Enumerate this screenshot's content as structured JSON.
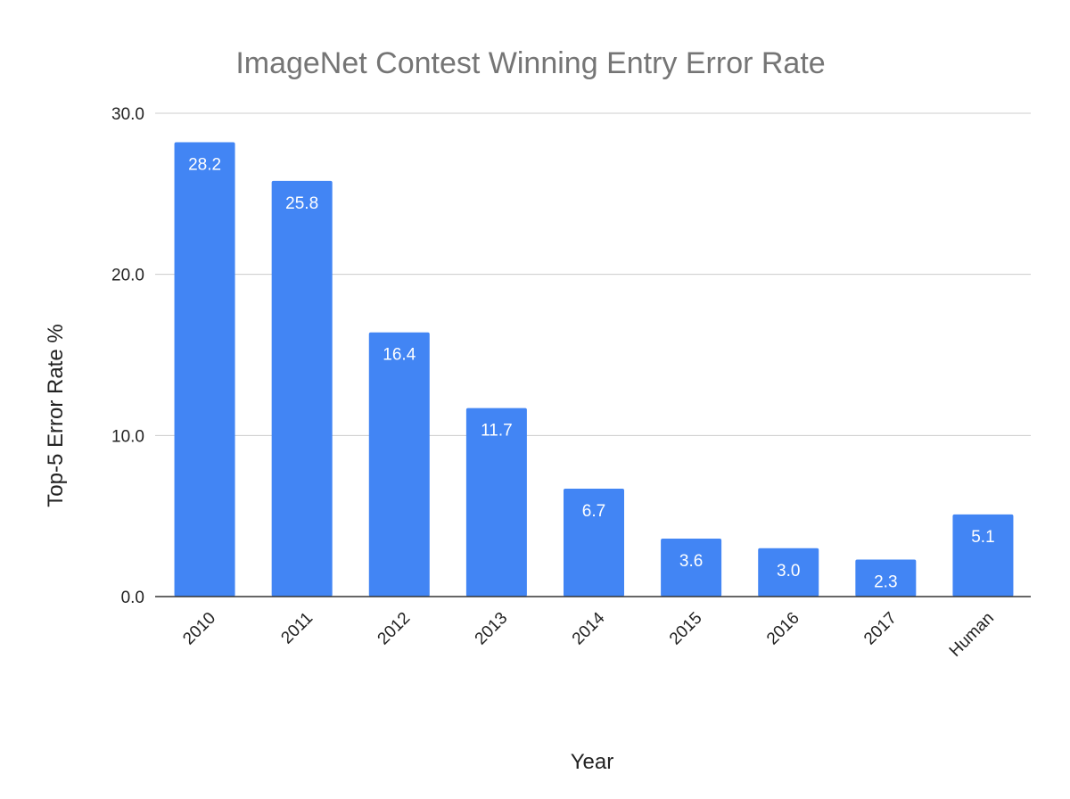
{
  "chart_data": {
    "type": "bar",
    "title": "ImageNet Contest Winning Entry Error Rate",
    "xlabel": "Year",
    "ylabel": "Top-5 Error Rate %",
    "categories": [
      "2010",
      "2011",
      "2012",
      "2013",
      "2014",
      "2015",
      "2016",
      "2017",
      "Human"
    ],
    "values": [
      28.2,
      25.8,
      16.4,
      11.7,
      6.7,
      3.6,
      3.0,
      2.3,
      5.1
    ],
    "value_labels": [
      "28.2",
      "25.8",
      "16.4",
      "11.7",
      "6.7",
      "3.6",
      "3.0",
      "2.3",
      "5.1"
    ],
    "ylim": [
      0,
      30
    ],
    "yticks": [
      "0.0",
      "10.0",
      "20.0",
      "30.0"
    ],
    "grid": true,
    "legend": "none",
    "bar_color": "#4285f4"
  }
}
